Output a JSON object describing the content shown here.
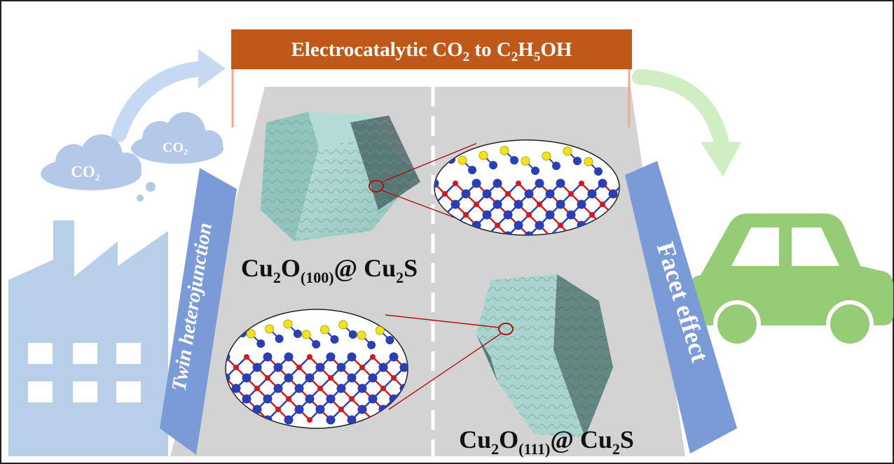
{
  "banner": {
    "prefix": "Electrocatalytic CO",
    "sub1": "2",
    "middle": " to C",
    "sub2": "2",
    "middle2": "H",
    "sub3": "5",
    "suffix": "OH"
  },
  "clouds": {
    "left": {
      "main": "CO",
      "sub": "2"
    },
    "right": {
      "main": "CO",
      "sub": "2"
    }
  },
  "left_panel": {
    "label": "Twin heterojunction"
  },
  "right_panel": {
    "label": "Facet effect"
  },
  "crystal_top": {
    "a": "Cu",
    "a_sub": "2",
    "b": "O",
    "b_sub": "(100)",
    "c": "@ Cu",
    "c_sub": "2",
    "d": "S"
  },
  "crystal_bottom": {
    "a": "Cu",
    "a_sub": "2",
    "b": "O",
    "b_sub": "(111)",
    "c": "@ Cu",
    "c_sub": "2",
    "d": "S"
  },
  "colors": {
    "banner": "#c0581a",
    "road": "#d3d3d3",
    "panel": "#7b9bd8",
    "factory": "#b7cfe8",
    "cloud": "#b4c8e8",
    "car": "#96cc76",
    "arrow_left": "#c6d9f2",
    "arrow_right": "#cfeec3",
    "crystal": "#a9d4cf",
    "atom_cu": "#2a3fb3",
    "atom_o": "#d21a1a",
    "atom_s": "#f2e21a"
  },
  "icons": [
    "factory-icon",
    "car-icon",
    "co2-cloud-icon",
    "crystal-cube-icon",
    "crystal-octahedron-icon",
    "atomic-structure-icon"
  ]
}
